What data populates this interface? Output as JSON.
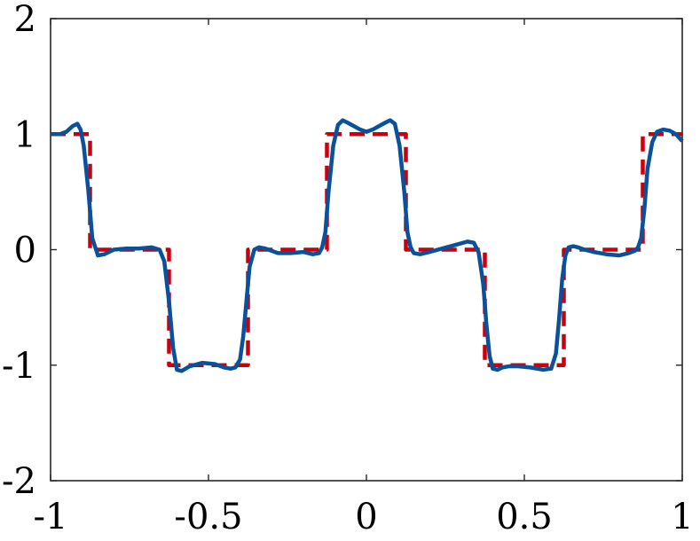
{
  "chart_data": {
    "type": "line",
    "title": "",
    "xlabel": "",
    "ylabel": "",
    "xlim": [
      -1,
      1
    ],
    "ylim": [
      -2,
      2
    ],
    "grid": false,
    "legend": "none",
    "x_ticks": [
      -1,
      -0.5,
      0,
      0.5,
      1
    ],
    "x_tick_labels": [
      "-1",
      "-0.5",
      "0",
      "0.5",
      "1"
    ],
    "y_ticks": [
      -2,
      -1,
      0,
      1,
      2
    ],
    "y_tick_labels": [
      "-2",
      "-1",
      "0",
      "1",
      "2"
    ],
    "series": [
      {
        "style": "solid",
        "color": "#0a519c",
        "x": [
          -1,
          -0.97,
          -0.95,
          -0.93,
          -0.915,
          -0.905,
          -0.895,
          -0.88,
          -0.868,
          -0.85,
          -0.83,
          -0.8,
          -0.76,
          -0.72,
          -0.68,
          -0.655,
          -0.64,
          -0.625,
          -0.612,
          -0.6,
          -0.585,
          -0.56,
          -0.52,
          -0.48,
          -0.45,
          -0.43,
          -0.415,
          -0.4,
          -0.39,
          -0.38,
          -0.37,
          -0.355,
          -0.34,
          -0.32,
          -0.28,
          -0.24,
          -0.2,
          -0.17,
          -0.15,
          -0.14,
          -0.13,
          -0.12,
          -0.105,
          -0.09,
          -0.075,
          -0.06,
          -0.04,
          -0.02,
          0,
          0.02,
          0.04,
          0.06,
          0.075,
          0.09,
          0.105,
          0.12,
          0.13,
          0.14,
          0.15,
          0.17,
          0.2,
          0.24,
          0.28,
          0.32,
          0.34,
          0.355,
          0.37,
          0.38,
          0.39,
          0.4,
          0.415,
          0.43,
          0.45,
          0.48,
          0.52,
          0.56,
          0.585,
          0.6,
          0.61,
          0.62,
          0.63,
          0.64,
          0.655,
          0.67,
          0.69,
          0.72,
          0.76,
          0.8,
          0.83,
          0.85,
          0.86,
          0.87,
          0.88,
          0.89,
          0.905,
          0.92,
          0.94,
          0.96,
          0.98,
          1
        ],
        "y": [
          1,
          1,
          1.02,
          1.07,
          1.09,
          1.04,
          0.9,
          0.5,
          0.1,
          -0.05,
          -0.04,
          0,
          0.01,
          0.01,
          0.02,
          0,
          -0.1,
          -0.45,
          -0.85,
          -1.04,
          -1.05,
          -1.01,
          -0.98,
          -0.99,
          -1.02,
          -1.03,
          -1.02,
          -0.95,
          -0.75,
          -0.45,
          -0.15,
          0,
          0.02,
          0.01,
          -0.03,
          -0.03,
          -0.02,
          -0.04,
          -0.03,
          0.02,
          0.15,
          0.5,
          0.9,
          1.08,
          1.12,
          1.1,
          1.07,
          1.04,
          1.02,
          1.04,
          1.07,
          1.1,
          1.12,
          1.09,
          0.9,
          0.5,
          0.15,
          0.02,
          -0.03,
          -0.04,
          -0.02,
          0.01,
          0.04,
          0.07,
          0.06,
          -0.02,
          -0.3,
          -0.65,
          -0.92,
          -1.03,
          -1.04,
          -1.02,
          -1.01,
          -1.01,
          -1.02,
          -1.04,
          -1.03,
          -0.9,
          -0.6,
          -0.25,
          -0.05,
          0.02,
          0.03,
          0.02,
          0,
          -0.02,
          -0.04,
          -0.05,
          -0.03,
          -0.01,
          0.02,
          0.1,
          0.35,
          0.7,
          0.93,
          1.02,
          1.04,
          1.03,
          1.0,
          0.94
        ]
      },
      {
        "style": "dashed",
        "color": "#c9000f",
        "x": [
          -1,
          -0.875,
          -0.875,
          -0.625,
          -0.625,
          -0.375,
          -0.375,
          -0.125,
          -0.125,
          0.125,
          0.125,
          0.375,
          0.375,
          0.625,
          0.625,
          0.875,
          0.875,
          1
        ],
        "y": [
          1,
          1,
          0,
          0,
          -1,
          -1,
          0,
          0,
          1,
          1,
          0,
          0,
          -1,
          -1,
          0,
          0,
          1,
          1
        ]
      }
    ]
  }
}
